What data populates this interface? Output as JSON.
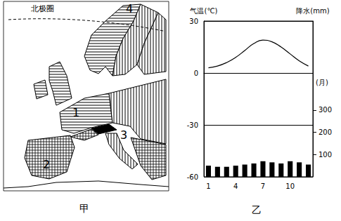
{
  "map": {
    "title": "甲",
    "arctic_circle": "北极圈",
    "region_labels": [
      "1",
      "2",
      "3",
      "4"
    ]
  },
  "chart_data": {
    "type": "bar_line",
    "title": "乙",
    "x_label": "(月)",
    "y_label": "气温(℃)",
    "y2_label": "降水(mm)",
    "categories": [
      "1",
      null,
      null,
      "4",
      null,
      null,
      "7",
      null,
      null,
      "10",
      null,
      null
    ],
    "series": [
      {
        "type": "line",
        "color": "#000000",
        "values": [
          3,
          4,
          6,
          9,
          13,
          17,
          19,
          18,
          15,
          11,
          7,
          4
        ]
      },
      {
        "type": "bar",
        "axis": "y2",
        "color": "#000000",
        "values": [
          50,
          45,
          45,
          50,
          55,
          60,
          70,
          65,
          60,
          70,
          65,
          55
        ]
      }
    ],
    "ylim": [
      -60,
      30
    ],
    "yticks": [
      -60,
      -30,
      0,
      30
    ],
    "y2lim": [
      0,
      700
    ],
    "y2ticks": [
      100,
      200,
      300
    ],
    "grid": true
  }
}
